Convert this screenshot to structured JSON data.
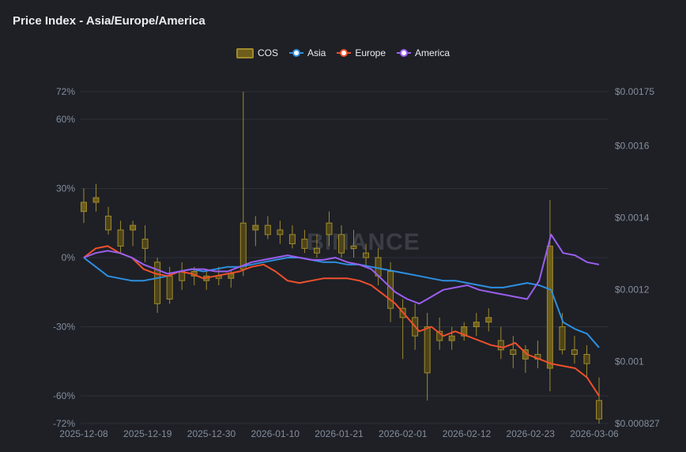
{
  "title": "Price Index - Asia/Europe/America",
  "legend": [
    {
      "name": "COS",
      "color": "#b59a2f",
      "kind": "box"
    },
    {
      "name": "Asia",
      "color": "#2e8fe0",
      "kind": "line"
    },
    {
      "name": "Europe",
      "color": "#f0502c",
      "kind": "line"
    },
    {
      "name": "America",
      "color": "#9c5ff0",
      "kind": "line"
    }
  ],
  "watermark": "BINANCE",
  "chart_data": {
    "type": "line",
    "title": "Price Index - Asia/Europe/America",
    "x_ticks": [
      "2025-12-08",
      "2025-12-19",
      "2025-12-30",
      "2026-01-10",
      "2026-01-21",
      "2026-02-01",
      "2026-02-12",
      "2026-02-23",
      "2026-03-06"
    ],
    "y_left_ticks": [
      "72%",
      "60%",
      "30%",
      "0%",
      "-30%",
      "-60%",
      "-72%"
    ],
    "y_left_range": [
      -72,
      72
    ],
    "y_right_ticks": [
      "$0.00175",
      "$0.0016",
      "$0.0014",
      "$0.0012",
      "$0.001",
      "$0.000827"
    ],
    "y_right_range": [
      0.000827,
      0.00175
    ],
    "grid": true,
    "legend_position": "top",
    "series": [
      {
        "name": "Asia",
        "color": "#2e8fe0",
        "values": [
          0,
          -4,
          -8,
          -9,
          -10,
          -10,
          -9,
          -8,
          -6,
          -5,
          -6,
          -5,
          -4,
          -4,
          -3,
          -2,
          -1,
          0,
          0,
          -1,
          -2,
          -2,
          -3,
          -3,
          -4,
          -5,
          -6,
          -7,
          -8,
          -9,
          -10,
          -10,
          -11,
          -12,
          -13,
          -13,
          -12,
          -11,
          -12,
          -14,
          -28,
          -31,
          -33,
          -39
        ]
      },
      {
        "name": "Europe",
        "color": "#f0502c",
        "values": [
          0,
          4,
          5,
          2,
          0,
          -5,
          -7,
          -8,
          -6,
          -7,
          -9,
          -8,
          -7,
          -6,
          -4,
          -3,
          -6,
          -10,
          -11,
          -10,
          -9,
          -9,
          -9,
          -10,
          -12,
          -16,
          -20,
          -26,
          -32,
          -30,
          -34,
          -32,
          -34,
          -36,
          -38,
          -39,
          -37,
          -42,
          -44,
          -46,
          -47,
          -48,
          -52,
          -60
        ]
      },
      {
        "name": "America",
        "color": "#9c5ff0",
        "values": [
          0,
          2,
          3,
          2,
          0,
          -3,
          -5,
          -7,
          -6,
          -5,
          -5,
          -6,
          -6,
          -4,
          -2,
          -1,
          0,
          1,
          0,
          -1,
          -1,
          0,
          -2,
          -3,
          -5,
          -10,
          -15,
          -18,
          -20,
          -17,
          -14,
          -13,
          -12,
          -14,
          -15,
          -16,
          -17,
          -18,
          -10,
          10,
          2,
          1,
          -2,
          -3
        ]
      }
    ],
    "cos_candles": {
      "name": "COS",
      "bars": [
        {
          "o": 20,
          "h": 30,
          "l": 15,
          "c": 24
        },
        {
          "o": 24,
          "h": 32,
          "l": 20,
          "c": 26
        },
        {
          "o": 18,
          "h": 22,
          "l": 10,
          "c": 12
        },
        {
          "o": 12,
          "h": 16,
          "l": 2,
          "c": 5
        },
        {
          "o": 12,
          "h": 16,
          "l": 5,
          "c": 14
        },
        {
          "o": 8,
          "h": 14,
          "l": -2,
          "c": 4
        },
        {
          "o": -2,
          "h": 0,
          "l": -24,
          "c": -20
        },
        {
          "o": -8,
          "h": -4,
          "l": -20,
          "c": -18
        },
        {
          "o": -6,
          "h": -2,
          "l": -14,
          "c": -10
        },
        {
          "o": -8,
          "h": -4,
          "l": -12,
          "c": -6
        },
        {
          "o": -10,
          "h": -6,
          "l": -14,
          "c": -8
        },
        {
          "o": -8,
          "h": -4,
          "l": -12,
          "c": -9
        },
        {
          "o": -9,
          "h": -5,
          "l": -13,
          "c": -7
        },
        {
          "o": 15,
          "h": 72,
          "l": -8,
          "c": -5
        },
        {
          "o": 12,
          "h": 18,
          "l": 5,
          "c": 14
        },
        {
          "o": 14,
          "h": 18,
          "l": 8,
          "c": 10
        },
        {
          "o": 12,
          "h": 16,
          "l": 6,
          "c": 10
        },
        {
          "o": 10,
          "h": 14,
          "l": 4,
          "c": 6
        },
        {
          "o": 8,
          "h": 12,
          "l": 2,
          "c": 4
        },
        {
          "o": 4,
          "h": 10,
          "l": 0,
          "c": 2
        },
        {
          "o": 15,
          "h": 20,
          "l": 5,
          "c": 10
        },
        {
          "o": 10,
          "h": 14,
          "l": 0,
          "c": 2
        },
        {
          "o": 5,
          "h": 12,
          "l": 0,
          "c": 4
        },
        {
          "o": 2,
          "h": 6,
          "l": -4,
          "c": 0
        },
        {
          "o": 0,
          "h": 4,
          "l": -12,
          "c": -8
        },
        {
          "o": -6,
          "h": -2,
          "l": -28,
          "c": -22
        },
        {
          "o": -22,
          "h": -18,
          "l": -44,
          "c": -26
        },
        {
          "o": -26,
          "h": -20,
          "l": -40,
          "c": -34
        },
        {
          "o": -30,
          "h": -24,
          "l": -62,
          "c": -50
        },
        {
          "o": -32,
          "h": -26,
          "l": -40,
          "c": -36
        },
        {
          "o": -36,
          "h": -30,
          "l": -40,
          "c": -34
        },
        {
          "o": -34,
          "h": -28,
          "l": -36,
          "c": -30
        },
        {
          "o": -30,
          "h": -24,
          "l": -34,
          "c": -28
        },
        {
          "o": -28,
          "h": -22,
          "l": -32,
          "c": -26
        },
        {
          "o": -36,
          "h": -30,
          "l": -44,
          "c": -40
        },
        {
          "o": -40,
          "h": -34,
          "l": -48,
          "c": -42
        },
        {
          "o": -44,
          "h": -38,
          "l": -50,
          "c": -40
        },
        {
          "o": -42,
          "h": -36,
          "l": -48,
          "c": -44
        },
        {
          "o": -48,
          "h": 25,
          "l": -58,
          "c": 5
        },
        {
          "o": -30,
          "h": -24,
          "l": -42,
          "c": -40
        },
        {
          "o": -40,
          "h": -34,
          "l": -46,
          "c": -42
        },
        {
          "o": -42,
          "h": -38,
          "l": -52,
          "c": -46
        },
        {
          "o": -62,
          "h": -52,
          "l": -72,
          "c": -70
        }
      ]
    }
  }
}
